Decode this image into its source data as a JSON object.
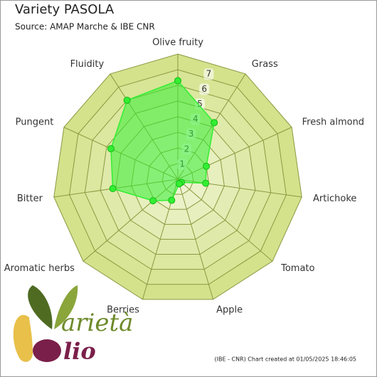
{
  "chart_data": {
    "type": "radar",
    "title": "Variety PASOLA",
    "subtitle": "Source: AMAP Marche & IBE CNR",
    "categories": [
      "Olive fruity",
      "Grass",
      "Fresh almond",
      "Artichoke",
      "Tomato",
      "Apple",
      "Berries",
      "Aromatic herbs",
      "Bitter",
      "Pungent",
      "Fluidity"
    ],
    "values": [
      6.3,
      4.3,
      2.0,
      1.8,
      0.3,
      0.3,
      1.4,
      2.1,
      4.2,
      4.7,
      6.0
    ],
    "color": "#33ee33",
    "ylim": [
      0,
      8
    ],
    "yticks": [
      1,
      2,
      3,
      4,
      5,
      6,
      7
    ],
    "grid": true,
    "footer": "(IBE - CNR) Chart created at 01/05/2025 18:46:05",
    "logo": {
      "top": "arietà",
      "bottom": "lio"
    }
  }
}
